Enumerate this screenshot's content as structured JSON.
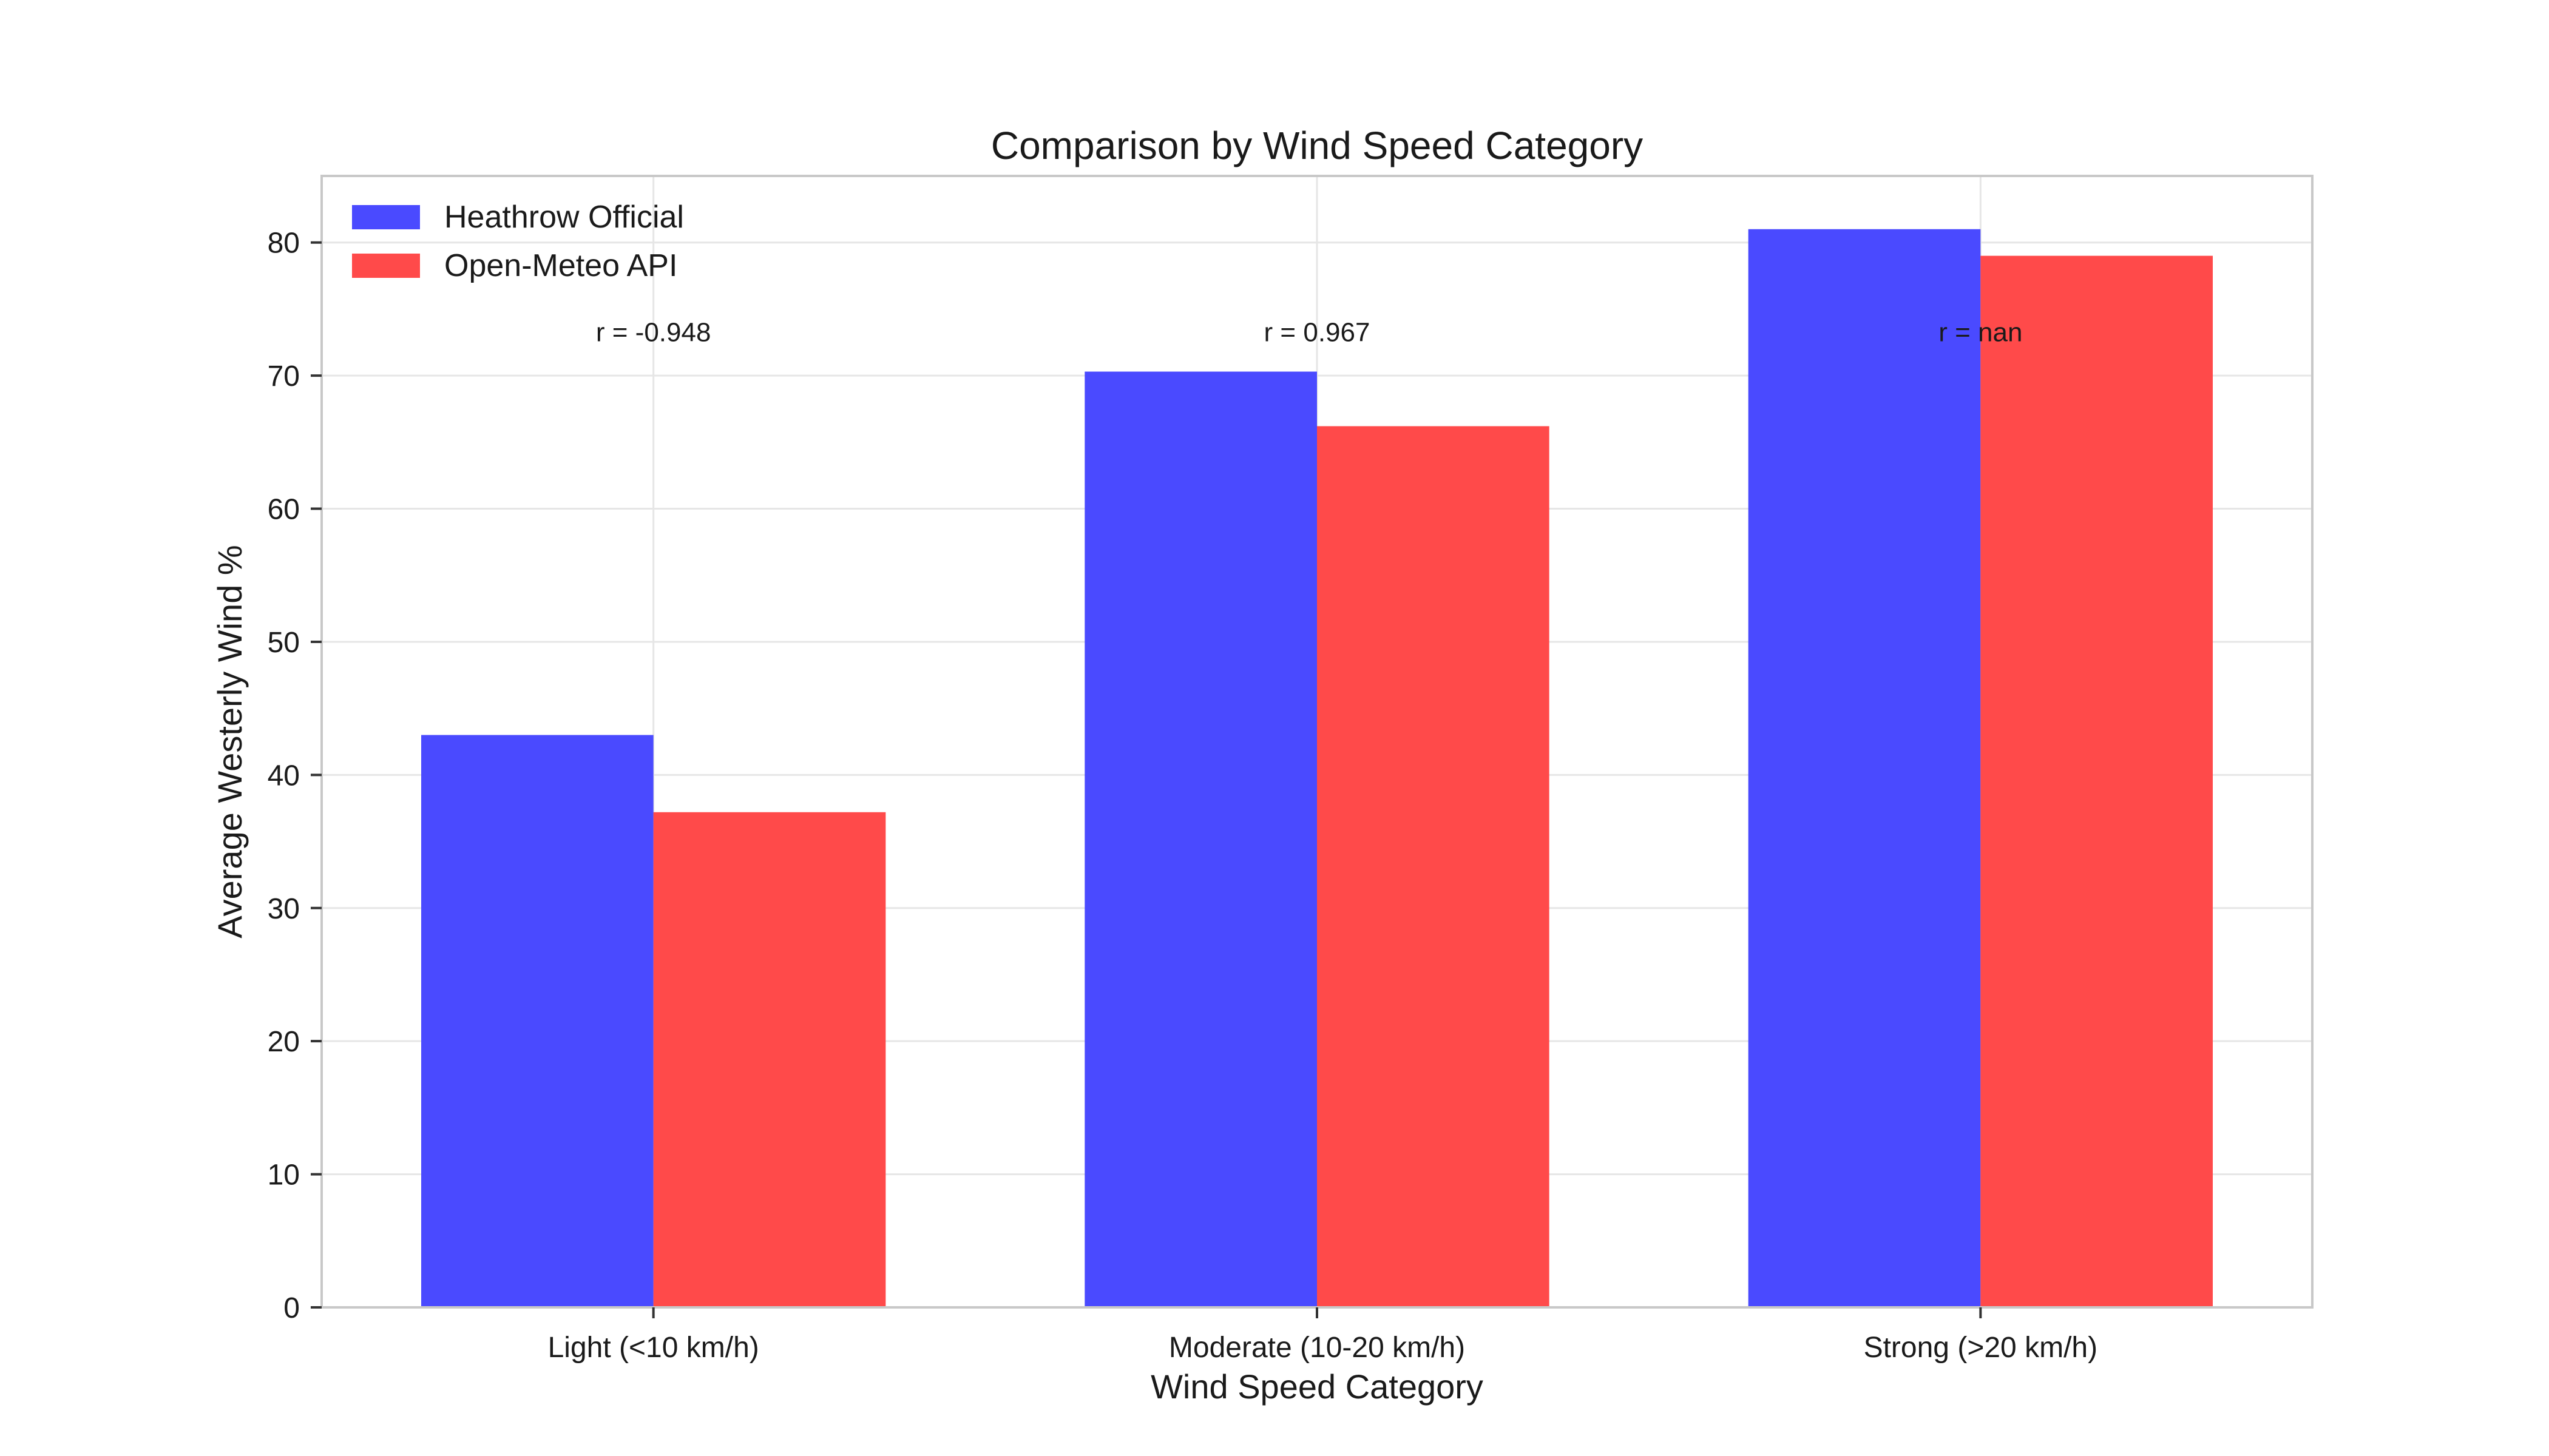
{
  "chart_data": {
    "type": "bar",
    "title": "Comparison by Wind Speed Category",
    "xlabel": "Wind Speed Category",
    "ylabel": "Average Westerly Wind %",
    "categories": [
      "Light (<10 km/h)",
      "Moderate (10-20 km/h)",
      "Strong (>20 km/h)"
    ],
    "series": [
      {
        "name": "Heathrow Official",
        "color": "#4a4aff",
        "values": [
          43.0,
          70.3,
          81.0
        ]
      },
      {
        "name": "Open-Meteo API",
        "color": "#ff4a4a",
        "values": [
          37.2,
          66.2,
          79.0
        ]
      }
    ],
    "annotations": [
      "r = -0.948",
      "r = 0.967",
      "r = nan"
    ],
    "annotation_y": 73.3,
    "ylim": [
      0,
      85
    ],
    "yticks": [
      0,
      10,
      20,
      30,
      40,
      50,
      60,
      70,
      80
    ],
    "grid": true,
    "legend_position": "top-left"
  }
}
